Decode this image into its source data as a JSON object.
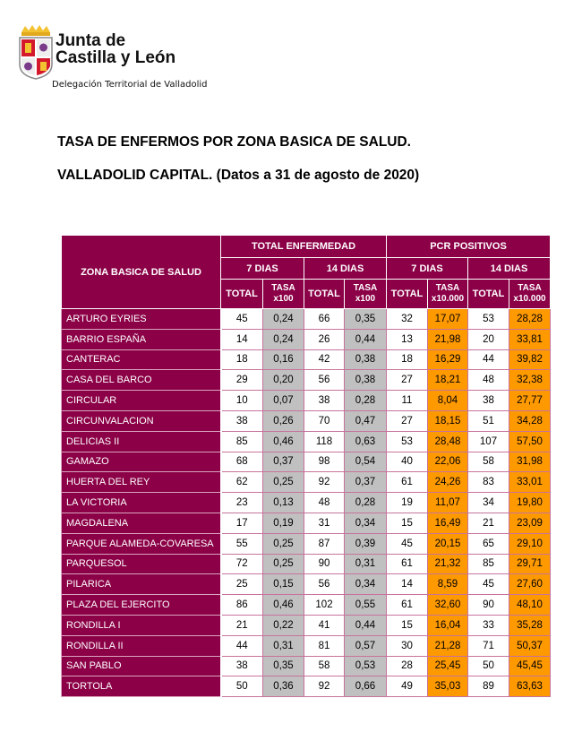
{
  "header": {
    "org_line1": "Junta de",
    "org_line2": "Castilla y León",
    "org_line3": "Delegación Territorial de Valladolid"
  },
  "title_line1": "TASA DE ENFERMOS POR ZONA BASICA DE SALUD.",
  "title_line2": "VALLADOLID CAPITAL. (Datos a 31 de agosto de 2020)",
  "colors": {
    "header_bg": "#8B0046",
    "tasa_enfermedad_bg": "#C0C0C0",
    "tasa_pcr_bg": "#FF9900"
  },
  "table": {
    "zone_header": "ZONA BASICA DE SALUD",
    "group_enfermedad": "TOTAL ENFERMEDAD",
    "group_pcr": "PCR POSITIVOS",
    "period_7": "7 DIAS",
    "period_14": "14 DIAS",
    "col_total": "TOTAL",
    "col_tasa": "TASA",
    "unit_100": "x100",
    "unit_10000": "x10.000",
    "rows": [
      [
        "ARTURO EYRIES",
        "45",
        "0,24",
        "66",
        "0,35",
        "32",
        "17,07",
        "53",
        "28,28"
      ],
      [
        "BARRIO ESPAÑA",
        "14",
        "0,24",
        "26",
        "0,44",
        "13",
        "21,98",
        "20",
        "33,81"
      ],
      [
        "CANTERAC",
        "18",
        "0,16",
        "42",
        "0,38",
        "18",
        "16,29",
        "44",
        "39,82"
      ],
      [
        "CASA DEL BARCO",
        "29",
        "0,20",
        "56",
        "0,38",
        "27",
        "18,21",
        "48",
        "32,38"
      ],
      [
        "CIRCULAR",
        "10",
        "0,07",
        "38",
        "0,28",
        "11",
        "8,04",
        "38",
        "27,77"
      ],
      [
        "CIRCUNVALACION",
        "38",
        "0,26",
        "70",
        "0,47",
        "27",
        "18,15",
        "51",
        "34,28"
      ],
      [
        "DELICIAS II",
        "85",
        "0,46",
        "118",
        "0,63",
        "53",
        "28,48",
        "107",
        "57,50"
      ],
      [
        "GAMAZO",
        "68",
        "0,37",
        "98",
        "0,54",
        "40",
        "22,06",
        "58",
        "31,98"
      ],
      [
        "HUERTA DEL REY",
        "62",
        "0,25",
        "92",
        "0,37",
        "61",
        "24,26",
        "83",
        "33,01"
      ],
      [
        "LA VICTORIA",
        "23",
        "0,13",
        "48",
        "0,28",
        "19",
        "11,07",
        "34",
        "19,80"
      ],
      [
        "MAGDALENA",
        "17",
        "0,19",
        "31",
        "0,34",
        "15",
        "16,49",
        "21",
        "23,09"
      ],
      [
        "PARQUE ALAMEDA-COVARESA",
        "55",
        "0,25",
        "87",
        "0,39",
        "45",
        "20,15",
        "65",
        "29,10"
      ],
      [
        "PARQUESOL",
        "72",
        "0,25",
        "90",
        "0,31",
        "61",
        "21,32",
        "85",
        "29,71"
      ],
      [
        "PILARICA",
        "25",
        "0,15",
        "56",
        "0,34",
        "14",
        "8,59",
        "45",
        "27,60"
      ],
      [
        "PLAZA DEL EJERCITO",
        "86",
        "0,46",
        "102",
        "0,55",
        "61",
        "32,60",
        "90",
        "48,10"
      ],
      [
        "RONDILLA I",
        "21",
        "0,22",
        "41",
        "0,44",
        "15",
        "16,04",
        "33",
        "35,28"
      ],
      [
        "RONDILLA II",
        "44",
        "0,31",
        "81",
        "0,57",
        "30",
        "21,28",
        "71",
        "50,37"
      ],
      [
        "SAN PABLO",
        "38",
        "0,35",
        "58",
        "0,53",
        "28",
        "25,45",
        "50",
        "45,45"
      ],
      [
        "TORTOLA",
        "50",
        "0,36",
        "92",
        "0,66",
        "49",
        "35,03",
        "89",
        "63,63"
      ]
    ]
  }
}
